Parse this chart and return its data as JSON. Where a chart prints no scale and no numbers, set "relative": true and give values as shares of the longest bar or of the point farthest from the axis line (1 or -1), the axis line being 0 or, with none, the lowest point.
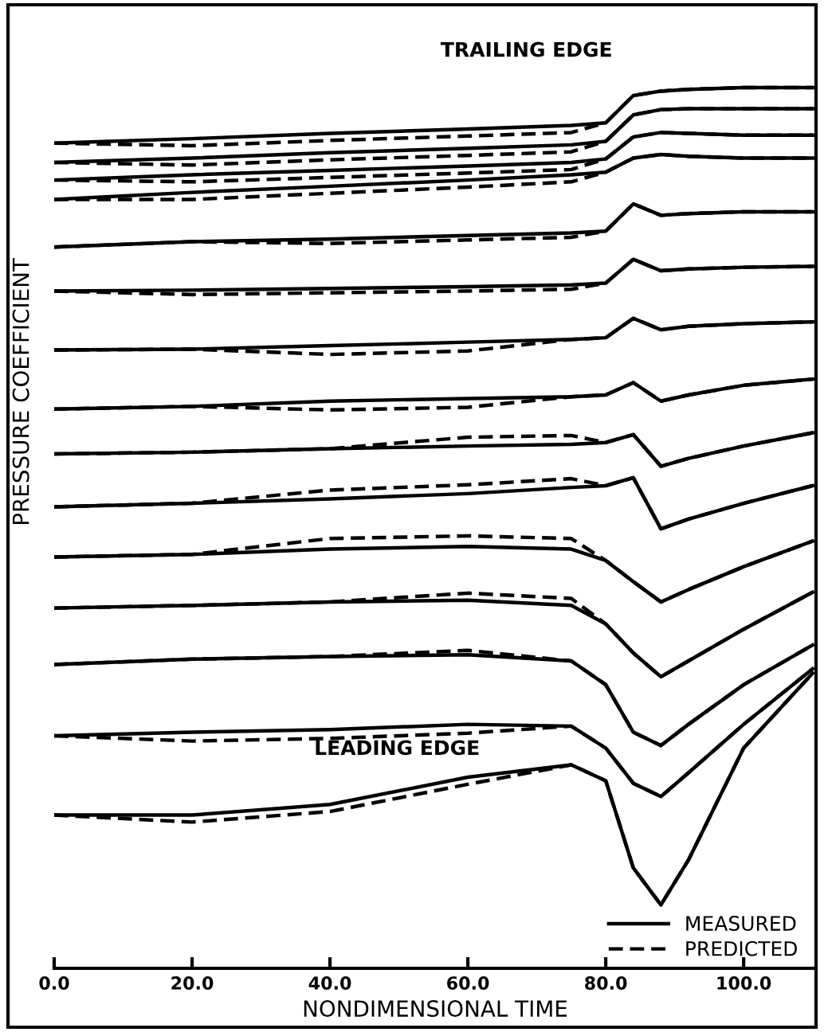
{
  "chart_data": {
    "type": "line",
    "relative": true,
    "xlabel": "NONDIMENSIONAL TIME",
    "ylabel": "PRESSURE COEFFICIENT",
    "annotations": [
      "TRAILING EDGE",
      "LEADING EDGE"
    ],
    "x": [
      0,
      20,
      40,
      60,
      75,
      80,
      84,
      88,
      92,
      100,
      110
    ],
    "xlim": [
      0,
      110.5
    ],
    "xticks": [
      {
        "value": 0,
        "label": "0.0"
      },
      {
        "value": 20,
        "label": "20.0"
      },
      {
        "value": 40,
        "label": "40.0"
      },
      {
        "value": 60,
        "label": "60.0"
      },
      {
        "value": 80,
        "label": "80.0"
      },
      {
        "value": 100,
        "label": "100.0"
      }
    ],
    "legend": "bottom right",
    "grid": false,
    "marker": "none",
    "series": [
      {
        "name": "MEASURED",
        "color": "#000000",
        "line_style": "solid",
        "values": [
          0.937,
          0.942,
          0.948,
          0.953,
          0.957,
          0.96,
          0.991,
          0.996,
          0.998,
          1.0,
          1.0
        ]
      },
      {
        "name": "PREDICTED",
        "color": "#000000",
        "line_style": "dashed",
        "values": [
          0.937,
          0.934,
          0.94,
          0.945,
          0.949,
          0.96,
          0.991,
          0.996,
          0.998,
          1.0,
          1.0
        ]
      },
      {
        "color": "#000000",
        "line_style": "solid",
        "values": [
          0.915,
          0.92,
          0.926,
          0.931,
          0.935,
          0.939,
          0.969,
          0.975,
          0.976,
          0.976,
          0.976
        ]
      },
      {
        "color": "#000000",
        "line_style": "dashed",
        "values": [
          0.915,
          0.912,
          0.918,
          0.923,
          0.927,
          0.939,
          0.969,
          0.975,
          0.976,
          0.976,
          0.976
        ]
      },
      {
        "color": "#000000",
        "line_style": "solid",
        "values": [
          0.895,
          0.901,
          0.906,
          0.911,
          0.915,
          0.919,
          0.944,
          0.949,
          0.948,
          0.946,
          0.946
        ]
      },
      {
        "color": "#000000",
        "line_style": "dashed",
        "values": [
          0.895,
          0.893,
          0.898,
          0.903,
          0.907,
          0.919,
          0.944,
          0.949,
          0.948,
          0.946,
          0.946
        ]
      },
      {
        "color": "#000000",
        "line_style": "solid",
        "values": [
          0.873,
          0.881,
          0.888,
          0.895,
          0.901,
          0.904,
          0.92,
          0.924,
          0.922,
          0.92,
          0.92
        ]
      },
      {
        "color": "#000000",
        "line_style": "dashed",
        "values": [
          0.873,
          0.873,
          0.88,
          0.887,
          0.893,
          0.904,
          0.92,
          0.924,
          0.922,
          0.92,
          0.92
        ]
      },
      {
        "color": "#000000",
        "line_style": "solid",
        "values": [
          0.819,
          0.825,
          0.828,
          0.832,
          0.835,
          0.837,
          0.868,
          0.855,
          0.857,
          0.859,
          0.859
        ]
      },
      {
        "color": "#000000",
        "line_style": "dashed",
        "values": [
          0.819,
          0.825,
          0.823,
          0.827,
          0.83,
          0.837,
          0.868,
          0.855,
          0.857,
          0.859,
          0.859
        ]
      },
      {
        "color": "#000000",
        "line_style": "solid",
        "values": [
          0.769,
          0.77,
          0.772,
          0.774,
          0.776,
          0.778,
          0.805,
          0.792,
          0.794,
          0.796,
          0.797
        ]
      },
      {
        "color": "#000000",
        "line_style": "dashed",
        "values": [
          0.769,
          0.765,
          0.767,
          0.769,
          0.771,
          0.778,
          0.805,
          0.792,
          0.794,
          0.796,
          0.797
        ]
      },
      {
        "color": "#000000",
        "line_style": "solid",
        "values": [
          0.702,
          0.703,
          0.707,
          0.711,
          0.714,
          0.716,
          0.738,
          0.725,
          0.729,
          0.732,
          0.734
        ]
      },
      {
        "color": "#000000",
        "line_style": "dashed",
        "values": [
          0.702,
          0.703,
          0.697,
          0.701,
          0.714,
          0.716,
          0.738,
          0.725,
          0.729,
          0.732,
          0.734
        ]
      },
      {
        "color": "#000000",
        "line_style": "solid",
        "values": [
          0.635,
          0.638,
          0.644,
          0.647,
          0.649,
          0.651,
          0.665,
          0.644,
          0.651,
          0.662,
          0.669
        ]
      },
      {
        "color": "#000000",
        "line_style": "dashed",
        "values": [
          0.635,
          0.638,
          0.634,
          0.637,
          0.649,
          0.651,
          0.665,
          0.644,
          0.651,
          0.662,
          0.669
        ]
      },
      {
        "color": "#000000",
        "line_style": "solid",
        "values": [
          0.584,
          0.586,
          0.59,
          0.593,
          0.595,
          0.597,
          0.606,
          0.57,
          0.579,
          0.593,
          0.608
        ]
      },
      {
        "color": "#000000",
        "line_style": "dashed",
        "values": [
          0.584,
          0.586,
          0.59,
          0.603,
          0.605,
          0.597,
          0.606,
          0.57,
          0.579,
          0.593,
          0.608
        ]
      },
      {
        "color": "#000000",
        "line_style": "solid",
        "values": [
          0.524,
          0.528,
          0.533,
          0.539,
          0.546,
          0.548,
          0.557,
          0.499,
          0.51,
          0.528,
          0.548
        ]
      },
      {
        "color": "#000000",
        "line_style": "dashed",
        "values": [
          0.524,
          0.528,
          0.543,
          0.549,
          0.556,
          0.548,
          0.557,
          0.499,
          0.51,
          0.528,
          0.548
        ]
      },
      {
        "color": "#000000",
        "line_style": "solid",
        "values": [
          0.467,
          0.47,
          0.476,
          0.479,
          0.476,
          0.463,
          0.439,
          0.416,
          0.43,
          0.456,
          0.485
        ]
      },
      {
        "color": "#000000",
        "line_style": "dashed",
        "values": [
          0.467,
          0.47,
          0.488,
          0.491,
          0.488,
          0.463,
          0.439,
          0.416,
          0.43,
          0.456,
          0.485
        ]
      },
      {
        "color": "#000000",
        "line_style": "solid",
        "values": [
          0.409,
          0.412,
          0.416,
          0.418,
          0.412,
          0.391,
          0.358,
          0.331,
          0.349,
          0.385,
          0.427
        ]
      },
      {
        "color": "#000000",
        "line_style": "dashed",
        "values": [
          0.409,
          0.412,
          0.416,
          0.426,
          0.42,
          0.391,
          0.358,
          0.331,
          0.349,
          0.385,
          0.427
        ]
      },
      {
        "color": "#000000",
        "line_style": "solid",
        "values": [
          0.345,
          0.351,
          0.354,
          0.356,
          0.349,
          0.322,
          0.268,
          0.253,
          0.277,
          0.322,
          0.367
        ]
      },
      {
        "color": "#000000",
        "line_style": "dashed",
        "values": [
          0.345,
          0.351,
          0.354,
          0.361,
          0.349,
          0.322,
          0.268,
          0.253,
          0.277,
          0.322,
          0.367
        ]
      },
      {
        "color": "#000000",
        "line_style": "solid",
        "values": [
          0.264,
          0.268,
          0.271,
          0.277,
          0.275,
          0.25,
          0.21,
          0.195,
          0.222,
          0.277,
          0.34
        ]
      },
      {
        "color": "#000000",
        "line_style": "dashed",
        "values": [
          0.264,
          0.258,
          0.261,
          0.267,
          0.275,
          0.25,
          0.21,
          0.195,
          0.222,
          0.277,
          0.34
        ]
      },
      {
        "color": "#000000",
        "line_style": "solid",
        "values": [
          0.174,
          0.174,
          0.186,
          0.217,
          0.231,
          0.213,
          0.114,
          0.072,
          0.123,
          0.25,
          0.335
        ]
      },
      {
        "color": "#000000",
        "line_style": "dashed",
        "values": [
          0.174,
          0.166,
          0.178,
          0.209,
          0.231,
          0.213,
          0.114,
          0.072,
          0.123,
          0.25,
          0.335
        ]
      }
    ]
  }
}
